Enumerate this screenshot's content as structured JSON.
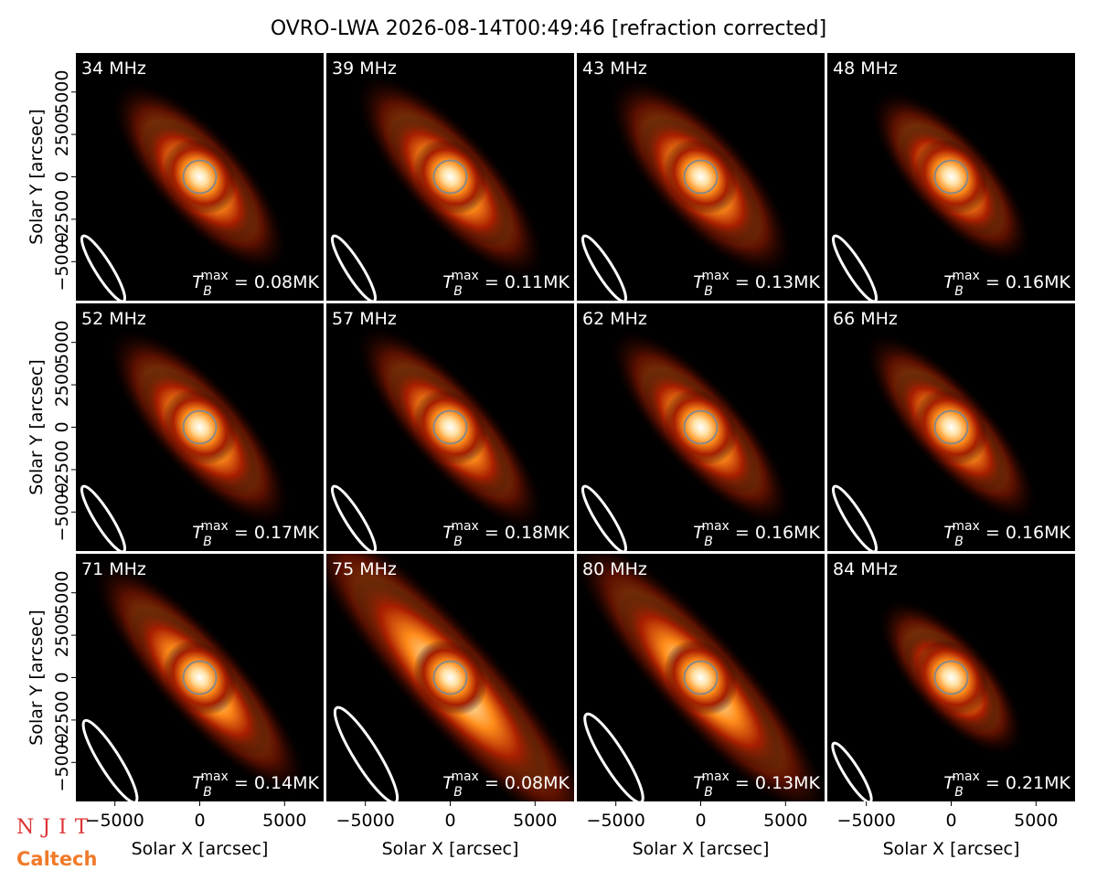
{
  "title": "OVRO-LWA 2026-08-14T00:49:46 [refraction corrected]",
  "logos": [
    "NJIT",
    "Caltech"
  ],
  "tb_symbol": {
    "base": "T",
    "sub": "B",
    "sup": "max",
    "relation": "="
  },
  "chart_data": [
    {
      "type": "image",
      "label": "34 MHz",
      "values": [
        0.08
      ],
      "value_labels": [
        "0.08MK"
      ],
      "xlim": [
        -7300,
        7300
      ],
      "ylim": [
        -7300,
        7300
      ],
      "ylabel": "Solar Y [arcsec]",
      "yticks": [
        {
          "value": -5000,
          "label": "−5000"
        },
        {
          "value": -2500,
          "label": "−2500"
        },
        0,
        2500,
        5000
      ]
    },
    {
      "type": "image",
      "label": "39 MHz",
      "values": [
        0.11
      ],
      "value_labels": [
        "0.11MK"
      ],
      "xlim": [
        -7300,
        7300
      ],
      "ylim": [
        -7300,
        7300
      ]
    },
    {
      "type": "image",
      "label": "43 MHz",
      "values": [
        0.13
      ],
      "value_labels": [
        "0.13MK"
      ],
      "xlim": [
        -7300,
        7300
      ],
      "ylim": [
        -7300,
        7300
      ]
    },
    {
      "type": "image",
      "label": "48 MHz",
      "values": [
        0.16
      ],
      "value_labels": [
        "0.16MK"
      ],
      "xlim": [
        -7300,
        7300
      ],
      "ylim": [
        -7300,
        7300
      ]
    },
    {
      "type": "image",
      "label": "52 MHz",
      "values": [
        0.17
      ],
      "value_labels": [
        "0.17MK"
      ],
      "xlim": [
        -7300,
        7300
      ],
      "ylim": [
        -7300,
        7300
      ],
      "ylabel": "Solar Y [arcsec]",
      "yticks": [
        {
          "value": -5000,
          "label": "−5000"
        },
        {
          "value": -2500,
          "label": "−2500"
        },
        0,
        2500,
        5000
      ]
    },
    {
      "type": "image",
      "label": "57 MHz",
      "values": [
        0.18
      ],
      "value_labels": [
        "0.18MK"
      ],
      "xlim": [
        -7300,
        7300
      ],
      "ylim": [
        -7300,
        7300
      ]
    },
    {
      "type": "image",
      "label": "62 MHz",
      "values": [
        0.16
      ],
      "value_labels": [
        "0.16MK"
      ],
      "xlim": [
        -7300,
        7300
      ],
      "ylim": [
        -7300,
        7300
      ]
    },
    {
      "type": "image",
      "label": "66 MHz",
      "values": [
        0.16
      ],
      "value_labels": [
        "0.16MK"
      ],
      "xlim": [
        -7300,
        7300
      ],
      "ylim": [
        -7300,
        7300
      ]
    },
    {
      "type": "image",
      "label": "71 MHz",
      "values": [
        0.14
      ],
      "value_labels": [
        "0.14MK"
      ],
      "xlim": [
        -7300,
        7300
      ],
      "ylim": [
        -7300,
        7300
      ],
      "ylabel": "Solar Y [arcsec]",
      "yticks": [
        {
          "value": -5000,
          "label": "−5000"
        },
        {
          "value": -2500,
          "label": "−2500"
        },
        0,
        2500,
        5000
      ],
      "xlabel": "Solar X [arcsec]",
      "xticks": [
        {
          "value": -5000,
          "label": "−5000"
        },
        0,
        5000
      ]
    },
    {
      "type": "image",
      "label": "75 MHz",
      "values": [
        0.08
      ],
      "value_labels": [
        "0.08MK"
      ],
      "xlim": [
        -7300,
        7300
      ],
      "ylim": [
        -7300,
        7300
      ],
      "xlabel": "Solar X [arcsec]",
      "xticks": [
        {
          "value": -5000,
          "label": "−5000"
        },
        0,
        5000
      ]
    },
    {
      "type": "image",
      "label": "80 MHz",
      "values": [
        0.13
      ],
      "value_labels": [
        "0.13MK"
      ],
      "xlim": [
        -7300,
        7300
      ],
      "ylim": [
        -7300,
        7300
      ],
      "xlabel": "Solar X [arcsec]",
      "xticks": [
        {
          "value": -5000,
          "label": "−5000"
        },
        0,
        5000
      ]
    },
    {
      "type": "image",
      "label": "84 MHz",
      "values": [
        0.21
      ],
      "value_labels": [
        "0.21MK"
      ],
      "xlim": [
        -7300,
        7300
      ],
      "ylim": [
        -7300,
        7300
      ],
      "xlabel": "Solar X [arcsec]",
      "xticks": [
        {
          "value": -5000,
          "label": "−5000"
        },
        0,
        5000
      ]
    }
  ]
}
